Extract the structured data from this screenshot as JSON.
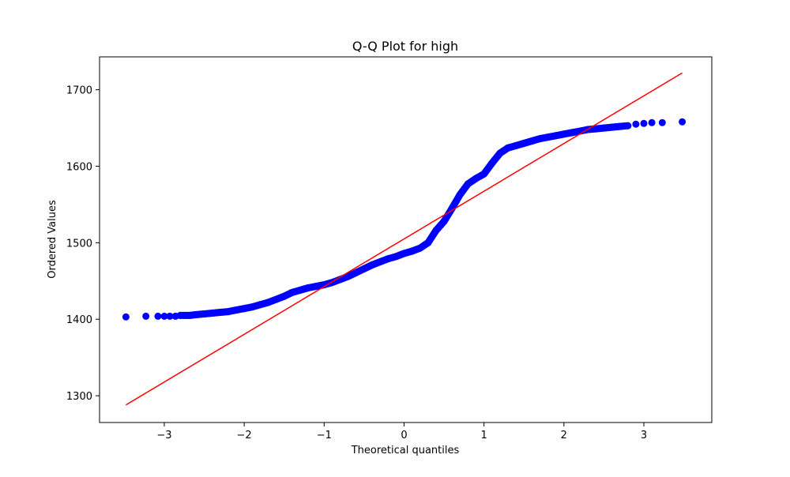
{
  "chart_data": {
    "type": "scatter",
    "title": "Q-Q Plot for high",
    "xlabel": "Theoretical quantiles",
    "ylabel": "Ordered Values",
    "xlim": [
      -3.81,
      3.85
    ],
    "ylim": [
      1265,
      1743
    ],
    "xticks": [
      -3,
      -2,
      -1,
      0,
      1,
      2,
      3
    ],
    "xtick_labels": [
      "−3",
      "−2",
      "−1",
      "0",
      "1",
      "2",
      "3"
    ],
    "yticks": [
      1300,
      1400,
      1500,
      1600,
      1700
    ],
    "ytick_labels": [
      "1300",
      "1400",
      "1500",
      "1600",
      "1700"
    ],
    "grid": false,
    "series": [
      {
        "kind": "points",
        "color": "#0000ff",
        "x": [
          -3.48,
          -3.23,
          -3.08,
          -3.0,
          -2.93,
          -2.86,
          -2.8,
          -2.74,
          -2.68,
          -2.6,
          -2.5,
          -2.4,
          -2.3,
          -2.2,
          -2.1,
          -2.0,
          -1.9,
          -1.8,
          -1.7,
          -1.6,
          -1.5,
          -1.4,
          -1.3,
          -1.2,
          -1.1,
          -1.0,
          -0.9,
          -0.8,
          -0.7,
          -0.6,
          -0.5,
          -0.4,
          -0.3,
          -0.2,
          -0.1,
          0.0,
          0.1,
          0.2,
          0.3,
          0.4,
          0.5,
          0.6,
          0.7,
          0.8,
          0.9,
          1.0,
          1.1,
          1.2,
          1.3,
          1.4,
          1.5,
          1.6,
          1.7,
          1.8,
          1.9,
          2.0,
          2.1,
          2.2,
          2.3,
          2.4,
          2.5,
          2.6,
          2.7,
          2.8,
          2.9,
          3.0,
          3.1,
          3.23,
          3.48
        ],
        "y": [
          1403,
          1404,
          1404,
          1404,
          1404,
          1404,
          1405,
          1405,
          1405,
          1406,
          1407,
          1408,
          1409,
          1410,
          1412,
          1414,
          1416,
          1419,
          1422,
          1426,
          1430,
          1435,
          1438,
          1441,
          1443,
          1445,
          1448,
          1452,
          1456,
          1461,
          1466,
          1471,
          1475,
          1479,
          1482,
          1486,
          1489,
          1493,
          1500,
          1516,
          1528,
          1545,
          1563,
          1577,
          1584,
          1590,
          1604,
          1617,
          1624,
          1627,
          1630,
          1633,
          1636,
          1638,
          1640,
          1642,
          1644,
          1646,
          1648,
          1649,
          1650,
          1651,
          1652,
          1653,
          1655,
          1656,
          1657,
          1657,
          1658
        ]
      },
      {
        "kind": "fit-line",
        "color": "#ff0000",
        "x": [
          -3.48,
          3.48
        ],
        "y": [
          1288,
          1722
        ]
      }
    ]
  }
}
